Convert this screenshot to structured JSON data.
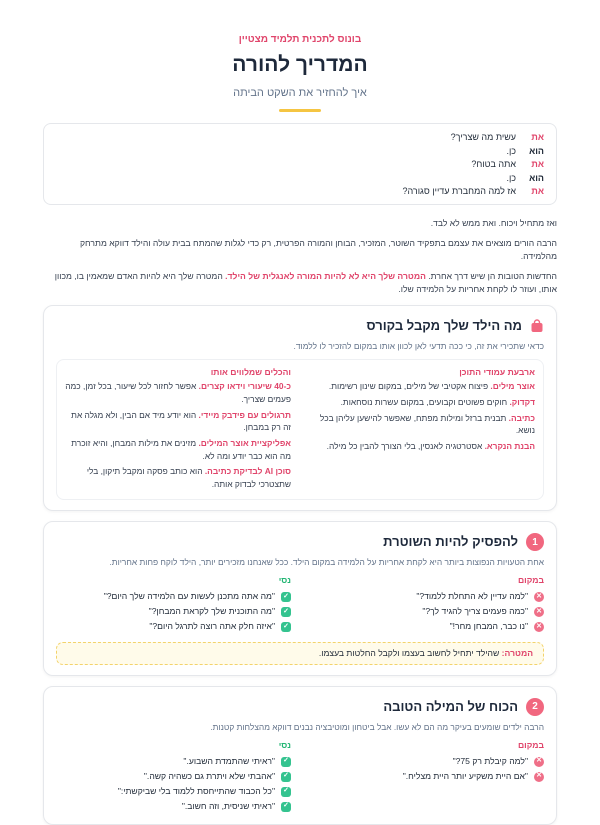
{
  "header": {
    "kicker": "בונוס לתכנית תלמיד מצטיין",
    "title": "המדריך להורה",
    "subtitle": "איך להחזיר את השקט הביתה"
  },
  "dialogue": [
    {
      "speaker": "את",
      "line": "עשית מה שצריך?"
    },
    {
      "speaker": "הוא",
      "line": "כן."
    },
    {
      "speaker": "את",
      "line": "אתה בטוח?"
    },
    {
      "speaker": "הוא",
      "line": "כן."
    },
    {
      "speaker": "את",
      "line": "אז למה המחברת עדיין סגורה?"
    }
  ],
  "intro": {
    "p1": "ואז מתחיל ויכוח. ואת ממש לא לבד.",
    "p2": "הרבה הורים מוצאים את עצמם בתפקיד השוטר, המזכיר, הבוחן והמורה הפרטית, רק כדי לגלות שהמתח בבית עולה והילד דווקא מתרחק מהלמידה.",
    "p3": {
      "before": "החדשות הטובות הן שיש דרך אחרת.",
      "highlight": "המטרה שלך היא לא להיות המורה לאנגלית של הילד.",
      "after": "המטרה שלך היא להיות האדם שמאמין בו, מכוון אותו, ועוזר לו לקחת אחריות על הלמידה שלו."
    }
  },
  "course": {
    "title": "מה הילד שלך מקבל בקורס",
    "description": "כדאי שתכירי את זה, כי ככה תדעי לאן לכוון אותו במקום להזכיר לו ללמוד.",
    "columns": [
      {
        "heading": "ארבעת עמודי התוכן",
        "items": [
          {
            "term": "אוצר מילים.",
            "text": "פיצוח אקטיבי של מילים, במקום שינון רשימות."
          },
          {
            "term": "דקדוק.",
            "text": "חוקים פשוטים וקבועים, במקום עשרות נוסחאות."
          },
          {
            "term": "כתיבה.",
            "text": "תבנית ברזל ומילות מפתח, שאפשר להישען עליהן בכל נושא."
          },
          {
            "term": "הבנת הנקרא.",
            "text": "אסטרטגיה לאנסין, בלי הצורך להבין כל מילה."
          }
        ]
      },
      {
        "heading": "והכלים שמלווים אותו",
        "items": [
          {
            "term": "כ-40 שיעורי וידאו קצרים.",
            "text": "אפשר לחזור לכל שיעור, בכל זמן, כמה פעמים שצריך."
          },
          {
            "term": "תרגולים עם פידבק מיידי.",
            "text": "הוא יודע מיד אם הבין, ולא מגלה את זה רק במבחן."
          },
          {
            "term": "אפליקציית אוצר המילים.",
            "text": "מזינים את מילות המבחן, והיא זוכרת מה הוא כבר יודע ומה לא."
          },
          {
            "term": "סוכן AI לבדיקת כתיבה.",
            "text": "הוא כותב פסקה ומקבל תיקון, בלי שתצטרכי לבדוק אותה."
          }
        ]
      }
    ]
  },
  "tips": [
    {
      "number": 1,
      "title": "להפסיק להיות השוטרת",
      "description": "אחת הטעויות הנפוצות ביותר היא לקחת אחריות על הלמידה במקום הילד. ככל שאנחנו מזכירים יותר, הילד לוקח פחות אחריות.",
      "instead": {
        "heading": "במקום",
        "items": [
          "\"למה עדיין לא התחלת ללמוד?\"",
          "\"כמה פעמים צריך להגיד לך?\"",
          "\"נו כבר, המבחן מחר!\""
        ]
      },
      "try": {
        "heading": "נסי",
        "items": [
          "\"מה אתה מתכנן לעשות עם הלמידה שלך היום?\"",
          "\"מה התוכנית שלך לקראת המבחן?\"",
          "\"איזה חלק אתה רוצה לתרגל היום?\""
        ]
      },
      "goal": {
        "label": "המטרה:",
        "text": "שהילד יתחיל לחשוב בעצמו ולקבל החלטות בעצמו."
      }
    },
    {
      "number": 2,
      "title": "הכוח של המילה הטובה",
      "description": "הרבה ילדים שומעים בעיקר מה הם לא עשו. אבל ביטחון ומוטיבציה נבנים דווקא מהצלחות קטנות.",
      "instead": {
        "heading": "במקום",
        "items": [
          "\"למה קיבלת רק 75?\"",
          "\"אם היית משקיע יותר היית מצליח.\""
        ]
      },
      "try": {
        "heading": "נסי",
        "items": [
          "\"ראיתי שהתמדת השבוע.\"",
          "\"אהבתי שלא ויתרת גם כשהיה קשה.\"",
          "\"כל הכבוד שהתייחסת ללמוד בלי שביקשתי:\"",
          "\"ראיתי שניסית, וזה חשוב.\""
        ]
      }
    }
  ]
}
